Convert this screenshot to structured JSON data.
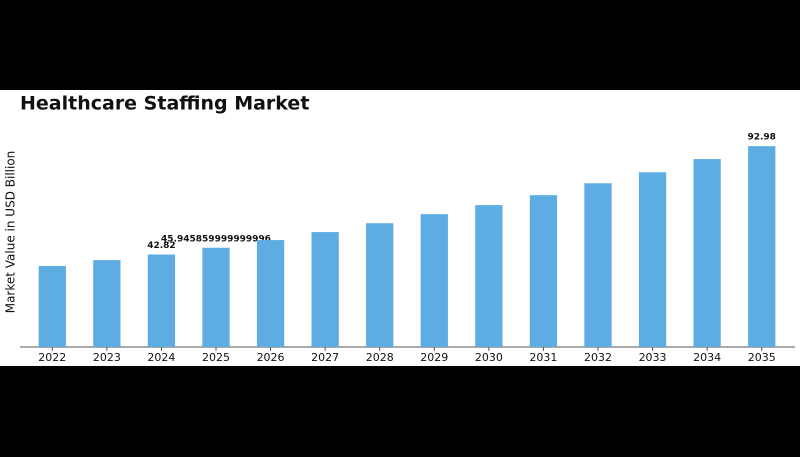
{
  "chart_data": {
    "type": "bar",
    "title": "Healthcare Staffing Market",
    "y_label": "Market Value in USD Billion",
    "categories": [
      "2022",
      "2023",
      "2024",
      "2025",
      "2026",
      "2027",
      "2028",
      "2029",
      "2030",
      "2031",
      "2032",
      "2033",
      "2034",
      "2035"
    ],
    "values": [
      37.5,
      40.2,
      42.82,
      45.945859999999996,
      49.5,
      53.2,
      57.3,
      61.5,
      65.7,
      70.3,
      75.8,
      80.9,
      87.0,
      92.98
    ],
    "value_labels": [
      null,
      null,
      "42.82",
      "45.945859999999996",
      null,
      null,
      null,
      null,
      null,
      null,
      null,
      null,
      null,
      "92.98"
    ],
    "color": "#5dade2",
    "ylim": [
      0,
      100
    ]
  }
}
